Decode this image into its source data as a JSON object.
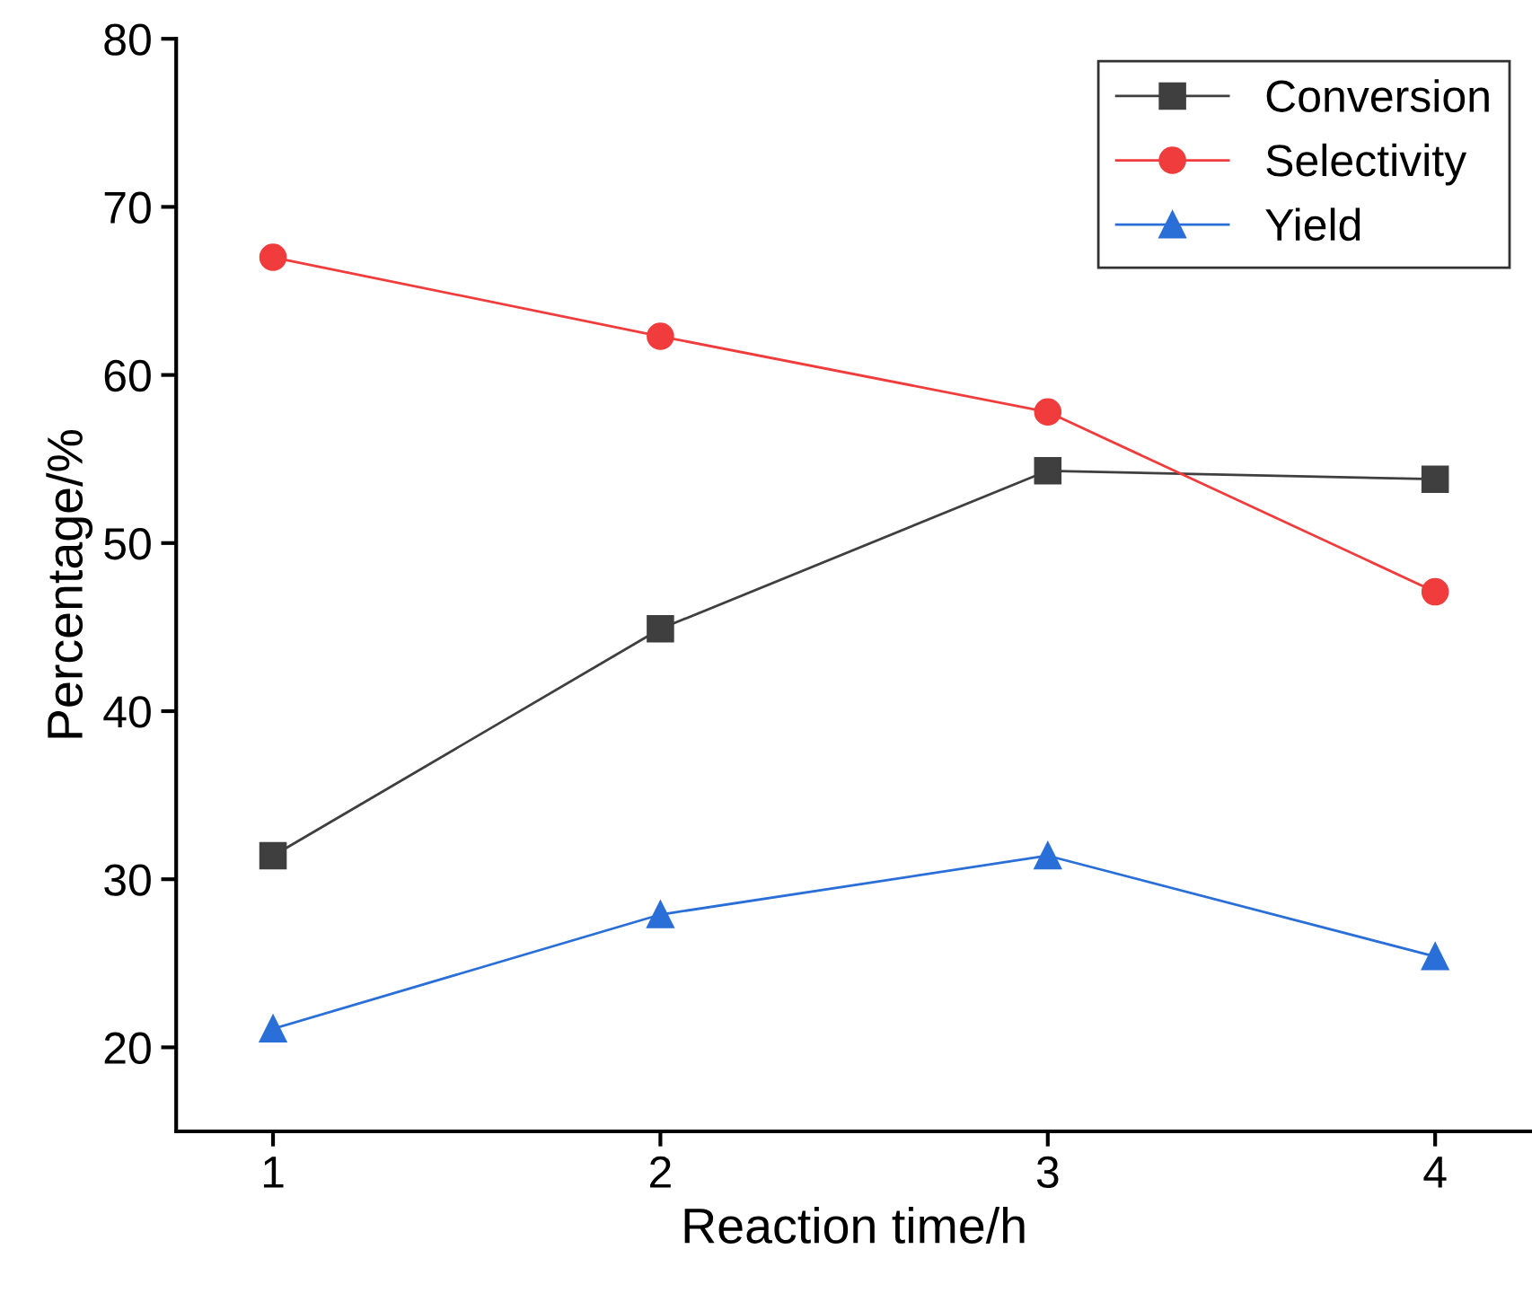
{
  "chart_data": {
    "type": "line",
    "xlabel": "Reaction time/h",
    "ylabel": "Percentage/%",
    "x": [
      1,
      2,
      3,
      4
    ],
    "series": [
      {
        "name": "Conversion",
        "color": "#3f3f3f",
        "marker": "square",
        "values": [
          31.4,
          44.9,
          54.3,
          53.8
        ]
      },
      {
        "name": "Selectivity",
        "color": "#f03c3c",
        "marker": "circle",
        "values": [
          67.0,
          62.3,
          57.8,
          47.1
        ]
      },
      {
        "name": "Yield",
        "color": "#2a6fd8",
        "marker": "triangle",
        "values": [
          21.1,
          27.9,
          31.4,
          25.4
        ]
      }
    ],
    "xlim": [
      0.75,
      4.25
    ],
    "xticks": [
      1,
      2,
      3,
      4
    ],
    "ylim": [
      15,
      80
    ],
    "yticks": [
      20,
      30,
      40,
      50,
      60,
      70,
      80
    ],
    "legend": "top right",
    "grid": false,
    "line_style": "solid"
  }
}
